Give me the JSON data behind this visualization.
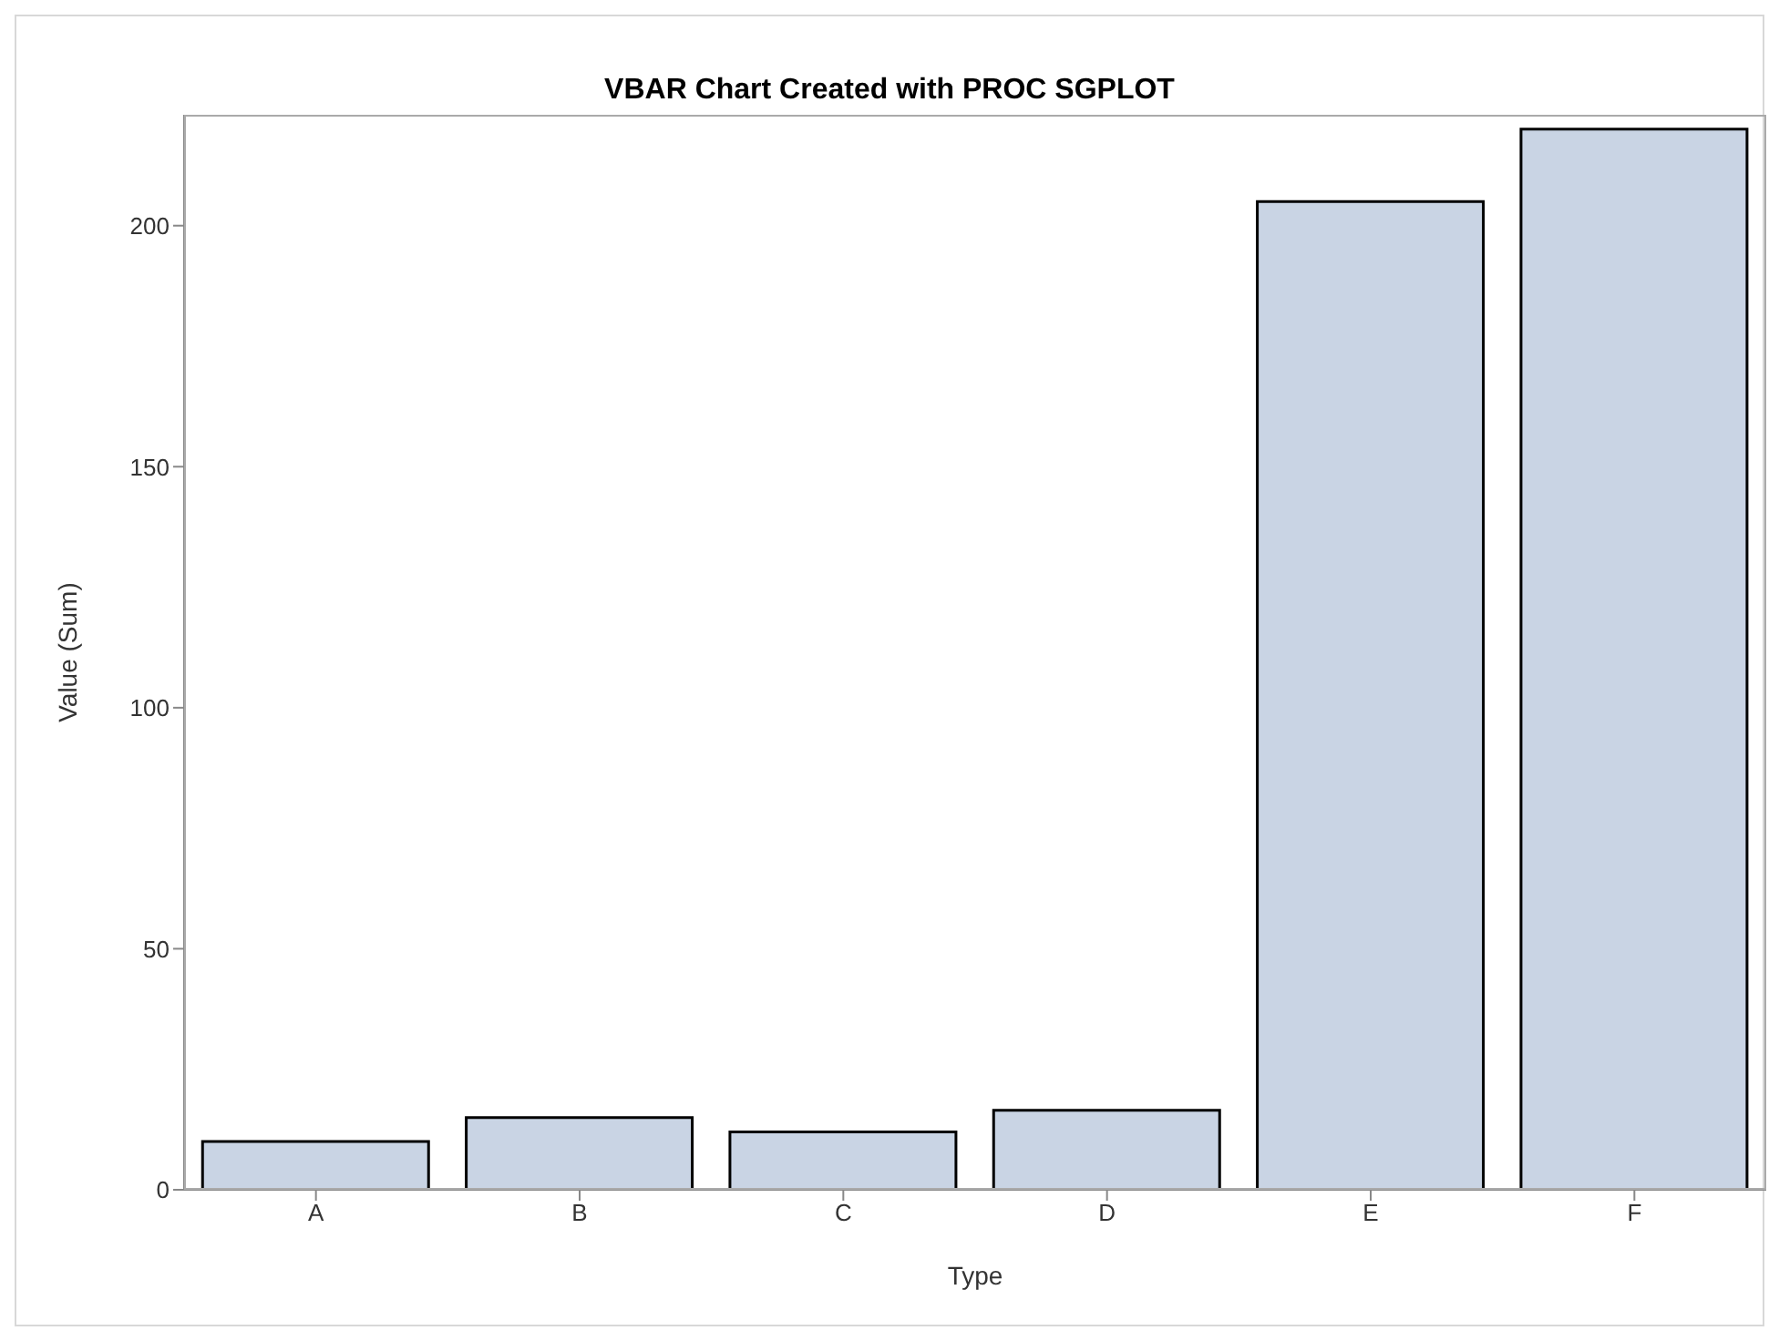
{
  "chart_data": {
    "type": "bar",
    "title": "VBAR Chart Created with PROC SGPLOT",
    "xlabel": "Type",
    "ylabel": "Value (Sum)",
    "categories": [
      "A",
      "B",
      "C",
      "D",
      "E",
      "F"
    ],
    "values": [
      10,
      15,
      12,
      16.5,
      205,
      220
    ],
    "color": "#c9d4e4",
    "ylim": [
      0,
      223
    ],
    "yticks": [
      0,
      50,
      100,
      150,
      200
    ],
    "grid": false,
    "legend": false
  }
}
